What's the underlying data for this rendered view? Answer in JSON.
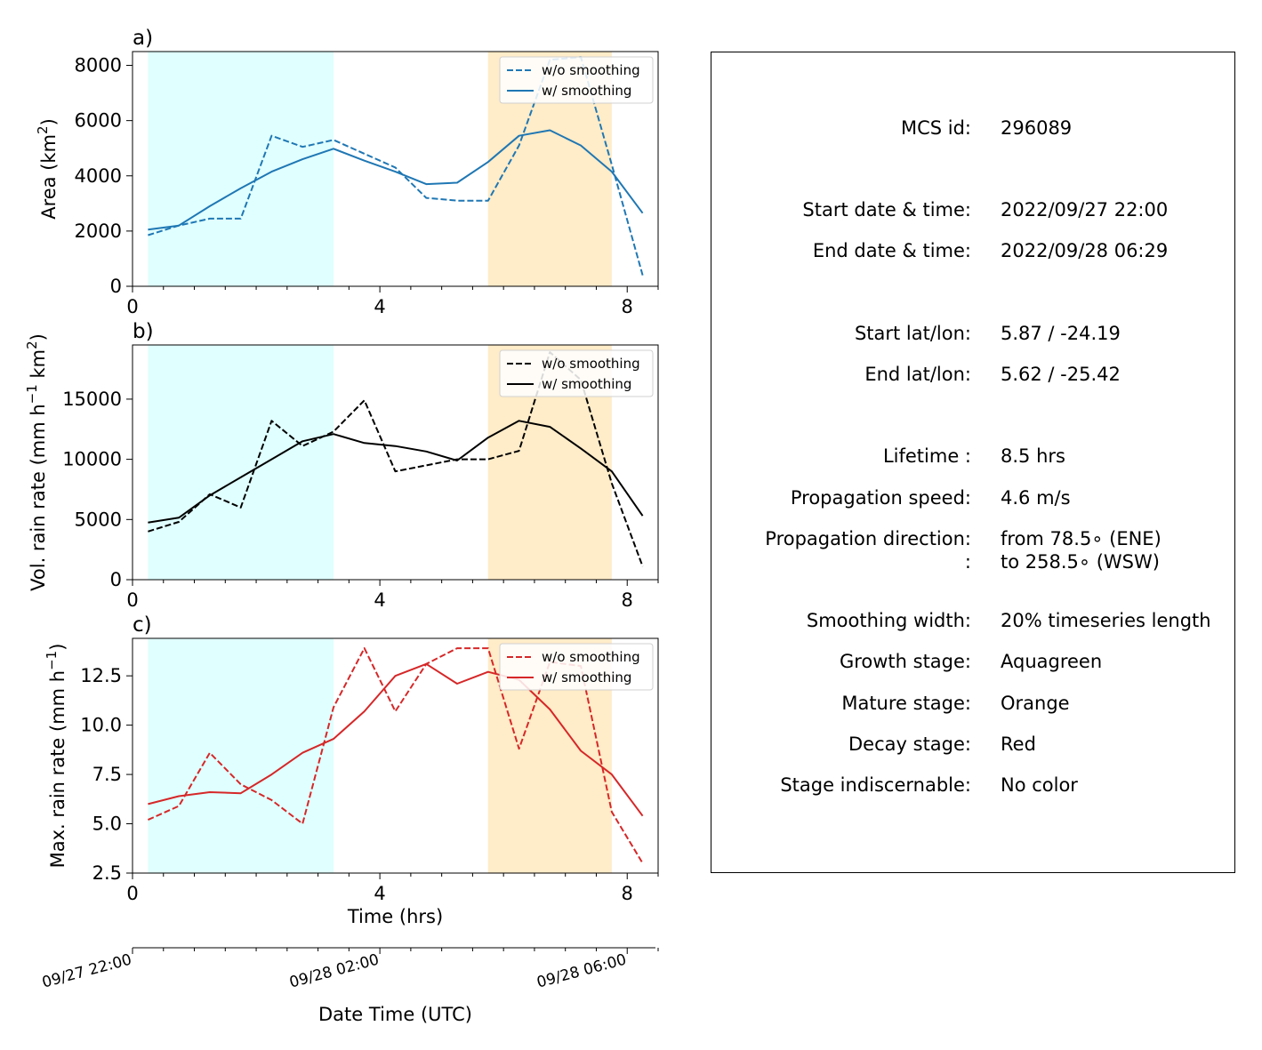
{
  "chart_data": [
    {
      "panel": "a)",
      "type": "line",
      "ylabel": "Area  (km²)",
      "xlim": [
        0,
        8.5
      ],
      "ylim": [
        0,
        8500
      ],
      "xticks": [
        0,
        4,
        8
      ],
      "xtick_labels": [
        "0",
        "4",
        "8"
      ],
      "yticks": [
        0,
        2000,
        4000,
        6000,
        8000
      ],
      "ytick_labels": [
        "0",
        "2000",
        "4000",
        "6000",
        "8000"
      ],
      "legend_position": "upper right",
      "x": [
        0.25,
        0.75,
        1.25,
        1.75,
        2.25,
        2.75,
        3.25,
        3.75,
        4.25,
        4.75,
        5.25,
        5.75,
        6.25,
        6.75,
        7.25,
        7.75,
        8.25
      ],
      "series": [
        {
          "name": "w/o smoothing",
          "style": "dashed",
          "color": "#1f77b4",
          "values": [
            1850,
            2200,
            2450,
            2450,
            5450,
            5050,
            5300,
            4800,
            4300,
            3200,
            3100,
            3100,
            5100,
            8200,
            8300,
            4400,
            400
          ]
        },
        {
          "name": "w/ smoothing",
          "style": "solid",
          "color": "#1f77b4",
          "values": [
            2050,
            2200,
            2900,
            3550,
            4150,
            4600,
            4980,
            4550,
            4150,
            3700,
            3750,
            4500,
            5450,
            5650,
            5100,
            4150,
            2650
          ]
        }
      ]
    },
    {
      "panel": "b)",
      "type": "line",
      "ylabel": "Vol. rain rate (mm h⁻¹ km²)",
      "xlim": [
        0,
        8.5
      ],
      "ylim": [
        0,
        19500
      ],
      "xticks": [
        0,
        4,
        8
      ],
      "xtick_labels": [
        "0",
        "4",
        "8"
      ],
      "yticks": [
        0,
        5000,
        10000,
        15000
      ],
      "ytick_labels": [
        "0",
        "5000",
        "10000",
        "15000"
      ],
      "legend_position": "upper right",
      "x": [
        0.25,
        0.75,
        1.25,
        1.75,
        2.25,
        2.75,
        3.25,
        3.75,
        4.25,
        4.75,
        5.25,
        5.75,
        6.25,
        6.75,
        7.25,
        7.75,
        8.25
      ],
      "series": [
        {
          "name": "w/o smoothing",
          "style": "dashed",
          "color": "#000000",
          "values": [
            4000,
            4800,
            7100,
            6000,
            13200,
            11100,
            12300,
            14900,
            9000,
            9500,
            10000,
            10000,
            10700,
            18900,
            16600,
            8000,
            1100
          ]
        },
        {
          "name": "w/ smoothing",
          "style": "solid",
          "color": "#000000",
          "values": [
            4750,
            5150,
            7000,
            8500,
            10000,
            11500,
            12100,
            11350,
            11100,
            10650,
            9900,
            11800,
            13200,
            12700,
            10900,
            9000,
            5300
          ]
        }
      ]
    },
    {
      "panel": "c)",
      "type": "line",
      "ylabel": "Max. rain rate  (mm h⁻¹)",
      "xlabel": "Time (hrs)",
      "xlim": [
        0,
        8.5
      ],
      "ylim": [
        2.5,
        14.4
      ],
      "xticks": [
        0,
        4,
        8
      ],
      "xtick_labels": [
        "0",
        "4",
        "8"
      ],
      "yticks": [
        2.5,
        5.0,
        7.5,
        10.0,
        12.5
      ],
      "ytick_labels": [
        "2.5",
        "5.0",
        "7.5",
        "10.0",
        "12.5"
      ],
      "legend_position": "upper right",
      "x": [
        0.25,
        0.75,
        1.25,
        1.75,
        2.25,
        2.75,
        3.25,
        3.75,
        4.25,
        4.75,
        5.25,
        5.75,
        6.25,
        6.75,
        7.25,
        7.75,
        8.25
      ],
      "series": [
        {
          "name": "w/o smoothing",
          "style": "dashed",
          "color": "#d62728",
          "values": [
            5.2,
            5.9,
            8.6,
            7.0,
            6.2,
            5.0,
            10.9,
            13.9,
            10.7,
            13.1,
            13.9,
            13.9,
            8.8,
            13.2,
            13.0,
            5.6,
            3.0
          ]
        },
        {
          "name": "w/ smoothing",
          "style": "solid",
          "color": "#d62728",
          "values": [
            6.0,
            6.4,
            6.6,
            6.55,
            7.5,
            8.6,
            9.3,
            10.7,
            12.5,
            13.1,
            12.1,
            12.7,
            12.3,
            10.8,
            8.7,
            7.5,
            5.4
          ]
        }
      ]
    }
  ],
  "stage_shading": [
    {
      "stage": "growth",
      "x_start": 0.25,
      "x_end": 3.25,
      "color": "#e0ffff"
    },
    {
      "stage": "mature",
      "x_start": 5.75,
      "x_end": 7.75,
      "color": "#ffecc8"
    }
  ],
  "datetime_axis": {
    "xlabel": "Date Time (UTC)",
    "xlim": [
      0,
      8.5
    ],
    "ticks": [
      0,
      4,
      8
    ],
    "tick_labels": [
      "09/27 22:00",
      "09/28 02:00",
      "09/28 06:00"
    ]
  },
  "info_panel": {
    "rows": [
      {
        "label": "MCS id:",
        "value": "296089"
      },
      {
        "label": "Start date & time:",
        "value": "2022/09/27 22:00"
      },
      {
        "label": "End date & time:",
        "value": "2022/09/28 06:29"
      },
      {
        "label": "Start lat/lon:",
        "value": "5.87 / -24.19"
      },
      {
        "label": "End lat/lon:",
        "value": "5.62 / -25.42"
      },
      {
        "label": "Lifetime :",
        "value": "8.5 hrs"
      },
      {
        "label": "Propagation speed:",
        "value": "4.6 m/s"
      },
      {
        "label": "Propagation direction:",
        "value": "from  78.5∘ (ENE)"
      },
      {
        "label": ":",
        "value": "to   258.5∘ (WSW)"
      },
      {
        "label": "Smoothing width:",
        "value": "20% timeseries length"
      },
      {
        "label": "Growth stage:",
        "value": "Aquagreen"
      },
      {
        "label": "Mature stage:",
        "value": "Orange"
      },
      {
        "label": "Decay stage:",
        "value": "Red"
      },
      {
        "label": "Stage indiscernable:",
        "value": "No color"
      }
    ]
  }
}
